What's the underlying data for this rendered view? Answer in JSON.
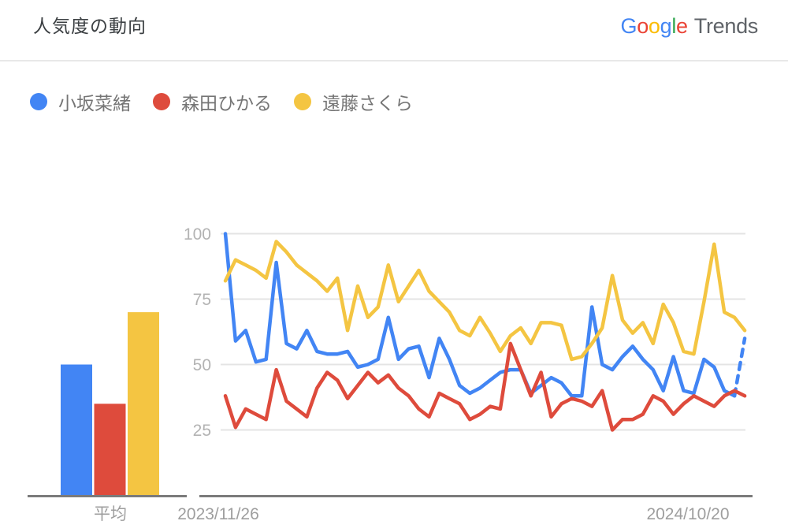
{
  "header": {
    "title": "人気度の動向",
    "logo": {
      "google_letters": [
        {
          "char": "G",
          "color": "#4285F4"
        },
        {
          "char": "o",
          "color": "#EA4335"
        },
        {
          "char": "o",
          "color": "#FBBC05"
        },
        {
          "char": "g",
          "color": "#4285F4"
        },
        {
          "char": "l",
          "color": "#34A853"
        },
        {
          "char": "e",
          "color": "#EA4335"
        }
      ],
      "suffix": "Trends",
      "suffix_color": "#5F6368"
    }
  },
  "legend": {
    "items": [
      {
        "label": "小坂菜緒",
        "color": "#4285F4"
      },
      {
        "label": "森田ひかる",
        "color": "#DE4B3C"
      },
      {
        "label": "遠藤さくら",
        "color": "#F4C542"
      }
    ]
  },
  "chart_data": [
    {
      "type": "bar",
      "categories": [
        "小坂菜緒",
        "森田ひかる",
        "遠藤さくら"
      ],
      "values": [
        50,
        35,
        70
      ],
      "colors": [
        "#4285F4",
        "#DE4B3C",
        "#F4C542"
      ],
      "xlabel": "平均",
      "ylim": [
        0,
        100
      ]
    },
    {
      "type": "line",
      "title": "人気度の動向",
      "x_tick_labels": [
        "2023/11/26",
        "2024/10/20"
      ],
      "y_ticks": [
        100,
        75,
        50,
        25
      ],
      "ylim": [
        0,
        100
      ],
      "grid": true,
      "frequency": "weekly",
      "series": [
        {
          "name": "小坂菜緒",
          "color": "#4285F4",
          "dashed_tail_segments": 1,
          "values": [
            100,
            59,
            63,
            51,
            52,
            89,
            58,
            56,
            63,
            55,
            54,
            54,
            55,
            49,
            50,
            52,
            68,
            52,
            56,
            57,
            45,
            60,
            52,
            42,
            39,
            41,
            44,
            47,
            48,
            48,
            39,
            42,
            45,
            43,
            38,
            38,
            72,
            50,
            48,
            53,
            57,
            52,
            48,
            40,
            53,
            40,
            39,
            52,
            49,
            40,
            38,
            60
          ]
        },
        {
          "name": "森田ひかる",
          "color": "#DE4B3C",
          "dashed_tail_segments": 0,
          "values": [
            38,
            26,
            33,
            31,
            29,
            48,
            36,
            33,
            30,
            41,
            47,
            44,
            37,
            42,
            47,
            43,
            46,
            41,
            38,
            33,
            30,
            39,
            37,
            35,
            29,
            31,
            34,
            33,
            58,
            48,
            38,
            47,
            30,
            35,
            37,
            36,
            34,
            40,
            25,
            29,
            29,
            31,
            38,
            36,
            31,
            35,
            38,
            36,
            34,
            38,
            40,
            38
          ]
        },
        {
          "name": "遠藤さくら",
          "color": "#F4C542",
          "dashed_tail_segments": 0,
          "values": [
            82,
            90,
            88,
            86,
            83,
            97,
            93,
            88,
            85,
            82,
            78,
            83,
            63,
            80,
            68,
            72,
            88,
            74,
            80,
            86,
            78,
            74,
            70,
            63,
            61,
            68,
            62,
            55,
            61,
            64,
            58,
            66,
            66,
            65,
            52,
            53,
            58,
            64,
            84,
            67,
            62,
            66,
            58,
            73,
            66,
            55,
            54,
            74,
            96,
            70,
            68,
            63
          ]
        }
      ]
    }
  ]
}
